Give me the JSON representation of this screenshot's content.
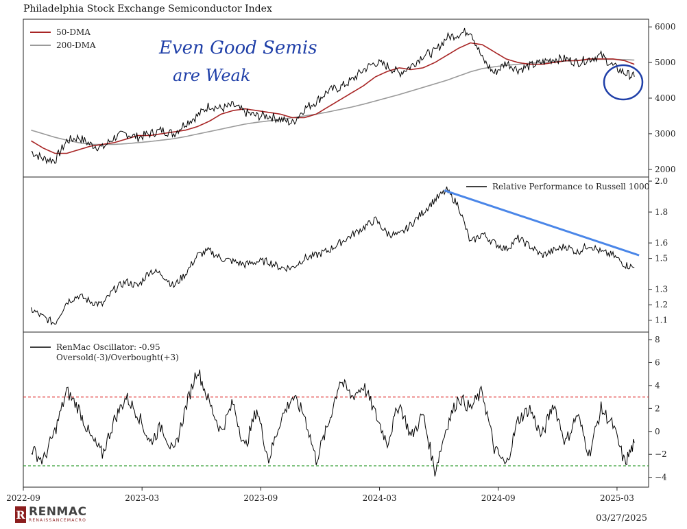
{
  "title": "Philadelphia Stock Exchange Semiconductor Index",
  "date_stamp": "03/27/2025",
  "logo": {
    "main": "RENMAC",
    "sub": "RENAISSANCEMACRO",
    "mark": "R"
  },
  "colors": {
    "price": "#000000",
    "dma50": "#a82525",
    "dma200": "#9a9a9a",
    "annotation": "#1f3fa8",
    "trendline": "#4a86e8",
    "overbought": "#e03030",
    "oversold": "#2a9a2a"
  },
  "chart_data": [
    {
      "type": "line",
      "panel": "price",
      "title": "Philadelphia Stock Exchange Semiconductor Index",
      "ylim": [
        1900,
        6100
      ],
      "yticks": [
        "2000",
        "3000",
        "4000",
        "5000",
        "6000"
      ],
      "xlim": [
        "2022-09",
        "2025-04"
      ],
      "xticks": [
        "2022-09",
        "2023-03",
        "2023-09",
        "2024-03",
        "2024-09",
        "2025-03"
      ],
      "legend": [
        "50-DMA",
        "200-DMA"
      ],
      "legend_position": "top-left",
      "annotation_lines": [
        "Even Good Semis",
        "are Weak"
      ],
      "x": [
        2022.7,
        2022.75,
        2022.8,
        2022.85,
        2022.9,
        2022.95,
        2023.0,
        2023.05,
        2023.1,
        2023.15,
        2023.2,
        2023.25,
        2023.3,
        2023.35,
        2023.4,
        2023.45,
        2023.5,
        2023.55,
        2023.6,
        2023.65,
        2023.7,
        2023.75,
        2023.8,
        2023.85,
        2023.9,
        2023.95,
        2024.0,
        2024.05,
        2024.1,
        2024.15,
        2024.2,
        2024.25,
        2024.3,
        2024.35,
        2024.4,
        2024.45,
        2024.5,
        2024.55,
        2024.6,
        2024.65,
        2024.7,
        2024.75,
        2024.8,
        2024.85,
        2024.9,
        2024.95,
        2025.0,
        2025.05,
        2025.1,
        2025.15,
        2025.2,
        2025.24
      ],
      "series": [
        {
          "name": "price",
          "values": [
            2500,
            2300,
            2250,
            2800,
            2900,
            2700,
            2600,
            2900,
            3000,
            2900,
            3000,
            3100,
            3000,
            3300,
            3500,
            3800,
            3700,
            3800,
            3600,
            3500,
            3500,
            3400,
            3300,
            3700,
            3900,
            4200,
            4300,
            4500,
            4800,
            5000,
            4900,
            4700,
            4900,
            5200,
            5300,
            5700,
            5800,
            5900,
            5100,
            4700,
            5000,
            4800,
            4900,
            5000,
            5100,
            5100,
            5000,
            5100,
            5200,
            4900,
            4700,
            4600
          ]
        },
        {
          "name": "50-DMA",
          "values": [
            2800,
            2600,
            2450,
            2450,
            2550,
            2650,
            2700,
            2750,
            2850,
            2950,
            2950,
            3000,
            3050,
            3100,
            3200,
            3350,
            3550,
            3650,
            3700,
            3650,
            3600,
            3550,
            3450,
            3450,
            3550,
            3750,
            3950,
            4150,
            4350,
            4600,
            4750,
            4850,
            4800,
            4850,
            5000,
            5200,
            5400,
            5550,
            5500,
            5300,
            5100,
            5000,
            4950,
            4950,
            5000,
            5050,
            5050,
            5100,
            5100,
            5100,
            5050,
            4950
          ]
        },
        {
          "name": "200-DMA",
          "values": [
            3100,
            3000,
            2900,
            2820,
            2750,
            2700,
            2700,
            2700,
            2720,
            2750,
            2780,
            2820,
            2860,
            2920,
            2990,
            3060,
            3130,
            3200,
            3270,
            3320,
            3360,
            3400,
            3450,
            3500,
            3550,
            3610,
            3680,
            3750,
            3830,
            3920,
            4010,
            4100,
            4200,
            4300,
            4400,
            4500,
            4620,
            4740,
            4830,
            4880,
            4920,
            4950,
            4980,
            5000,
            5020,
            5040,
            5060,
            5080,
            5090,
            5090,
            5080,
            5070
          ]
        }
      ]
    },
    {
      "type": "line",
      "panel": "relative",
      "ylim": [
        1.05,
        2.0
      ],
      "yticks": [
        "1.1",
        "1.2",
        "1.3",
        "1.5",
        "1.6",
        "1.8",
        "2.0"
      ],
      "legend": [
        "Relative Performance to Russell 1000"
      ],
      "legend_position": "top-right",
      "trendline": {
        "from": [
          2024.44,
          1.94
        ],
        "to": [
          2025.26,
          1.52
        ]
      },
      "x": [
        2022.7,
        2022.75,
        2022.8,
        2022.85,
        2022.9,
        2022.95,
        2023.0,
        2023.05,
        2023.1,
        2023.15,
        2023.2,
        2023.25,
        2023.3,
        2023.35,
        2023.4,
        2023.45,
        2023.5,
        2023.55,
        2023.6,
        2023.65,
        2023.7,
        2023.75,
        2023.8,
        2023.85,
        2023.9,
        2023.95,
        2024.0,
        2024.05,
        2024.1,
        2024.15,
        2024.2,
        2024.25,
        2024.3,
        2024.35,
        2024.4,
        2024.45,
        2024.5,
        2024.55,
        2024.6,
        2024.65,
        2024.7,
        2024.75,
        2024.8,
        2024.85,
        2024.9,
        2024.95,
        2025.0,
        2025.05,
        2025.1,
        2025.15,
        2025.2,
        2025.24
      ],
      "series": [
        {
          "name": "Relative Performance to Russell 1000",
          "values": [
            1.17,
            1.12,
            1.08,
            1.22,
            1.26,
            1.22,
            1.2,
            1.3,
            1.35,
            1.32,
            1.42,
            1.4,
            1.32,
            1.4,
            1.52,
            1.55,
            1.5,
            1.48,
            1.46,
            1.48,
            1.48,
            1.44,
            1.44,
            1.5,
            1.52,
            1.55,
            1.6,
            1.65,
            1.7,
            1.75,
            1.66,
            1.65,
            1.72,
            1.8,
            1.88,
            1.94,
            1.84,
            1.6,
            1.66,
            1.6,
            1.56,
            1.63,
            1.58,
            1.52,
            1.55,
            1.58,
            1.54,
            1.59,
            1.54,
            1.52,
            1.46,
            1.44
          ]
        }
      ]
    },
    {
      "type": "line",
      "panel": "oscillator",
      "ylim": [
        -4.5,
        8.3
      ],
      "yticks": [
        "−4",
        "−2",
        "0",
        "2",
        "4",
        "6",
        "8"
      ],
      "legend": [
        "RenMac Oscillator: -0.95",
        "Oversold(-3)/Overbought(+3)"
      ],
      "legend_position": "top-left",
      "overbought": 3,
      "oversold": -3,
      "x": [
        2022.7,
        2022.75,
        2022.8,
        2022.85,
        2022.9,
        2022.95,
        2023.0,
        2023.05,
        2023.1,
        2023.15,
        2023.2,
        2023.25,
        2023.3,
        2023.35,
        2023.4,
        2023.45,
        2023.5,
        2023.55,
        2023.6,
        2023.65,
        2023.7,
        2023.75,
        2023.8,
        2023.85,
        2023.9,
        2023.95,
        2024.0,
        2024.05,
        2024.1,
        2024.15,
        2024.2,
        2024.25,
        2024.3,
        2024.35,
        2024.4,
        2024.45,
        2024.5,
        2024.55,
        2024.6,
        2024.65,
        2024.7,
        2024.75,
        2024.8,
        2024.85,
        2024.9,
        2024.95,
        2025.0,
        2025.05,
        2025.1,
        2025.15,
        2025.2,
        2025.24
      ],
      "series": [
        {
          "name": "RenMac Oscillator",
          "values": [
            -1.5,
            -2.6,
            0,
            3.5,
            2.0,
            -0.5,
            -2.0,
            1.0,
            3.0,
            1.5,
            -1.0,
            0.5,
            -2.0,
            2.0,
            5.5,
            2.5,
            0,
            2.5,
            -1.5,
            2.0,
            -2.5,
            1.0,
            3.0,
            1.5,
            -2.5,
            0.5,
            4.5,
            3.0,
            4.0,
            1.5,
            -1.0,
            2.5,
            -0.5,
            1.5,
            -3.5,
            0.5,
            3.0,
            2.0,
            3.5,
            -1.5,
            -3.0,
            1.0,
            2.0,
            -0.5,
            2.5,
            -1.0,
            1.5,
            -2.0,
            2.0,
            0.5,
            -2.8,
            -1.0
          ]
        }
      ]
    }
  ]
}
